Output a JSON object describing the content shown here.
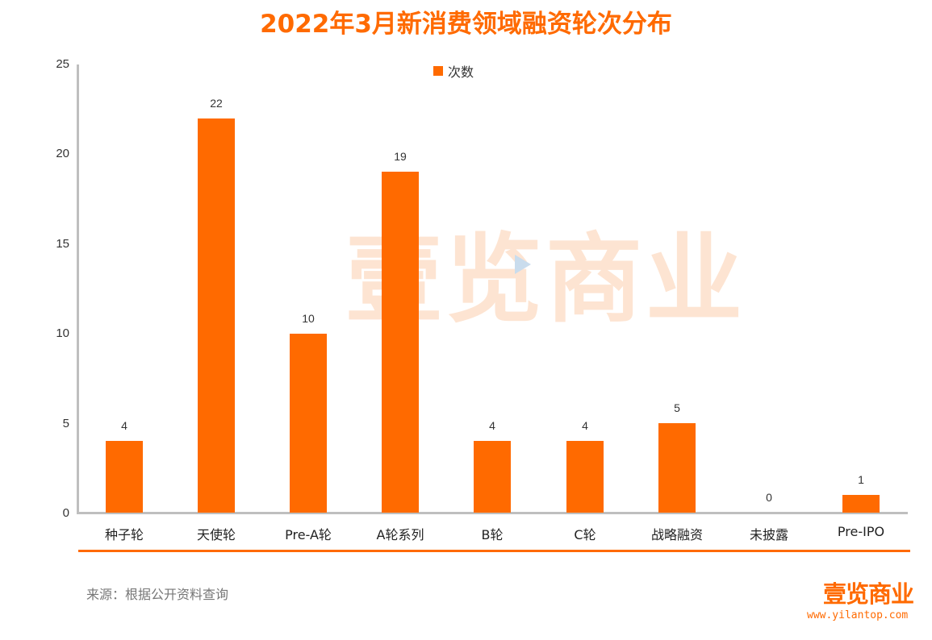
{
  "title": "2022年3月新消费领域融资轮次分布",
  "legend": {
    "label": "次数",
    "color": "#ff6a00"
  },
  "yaxis": {
    "ticks": [
      "25",
      "20",
      "15",
      "10",
      "5",
      "0"
    ]
  },
  "categories": [
    "种子轮",
    "天使轮",
    "Pre-A轮",
    "A轮系列",
    "B轮",
    "C轮",
    "战略融资",
    "未披露",
    "Pre-IPO"
  ],
  "values": [
    "4",
    "22",
    "10",
    "19",
    "4",
    "4",
    "5",
    "0",
    "1"
  ],
  "source": "来源：根据公开资料查询",
  "watermark": "壹览商业",
  "logo": {
    "name": "壹览商业",
    "url": "www.yilantop.com"
  },
  "chart_data": {
    "type": "bar",
    "title": "2022年3月新消费领域融资轮次分布",
    "categories": [
      "种子轮",
      "天使轮",
      "Pre-A轮",
      "A轮系列",
      "B轮",
      "C轮",
      "战略融资",
      "未披露",
      "Pre-IPO"
    ],
    "series": [
      {
        "name": "次数",
        "values": [
          4,
          22,
          10,
          19,
          4,
          4,
          5,
          0,
          1
        ],
        "color": "#ff6a00"
      }
    ],
    "xlabel": "",
    "ylabel": "",
    "ylim": [
      0,
      25
    ],
    "yticks": [
      0,
      5,
      10,
      15,
      20,
      25
    ],
    "grid": false,
    "legend_position": "top",
    "data_labels": true,
    "annotations": [
      "来源：根据公开资料查询"
    ]
  }
}
